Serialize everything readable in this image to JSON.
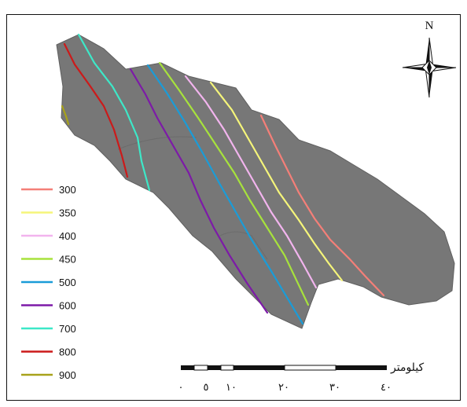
{
  "north_arrow": {
    "label": "N"
  },
  "legend": {
    "items": [
      {
        "label": "300",
        "color": "#f47f78"
      },
      {
        "label": "350",
        "color": "#f5f57a"
      },
      {
        "label": "400",
        "color": "#f2b4ee"
      },
      {
        "label": "450",
        "color": "#a7e23c"
      },
      {
        "label": "500",
        "color": "#1a9cd8"
      },
      {
        "label": "600",
        "color": "#7d1aa8"
      },
      {
        "label": "700",
        "color": "#3de8c8"
      },
      {
        "label": "800",
        "color": "#cc1a1a"
      },
      {
        "label": "900",
        "color": "#a8a21a"
      }
    ]
  },
  "scale_bar": {
    "unit_label": "کیلومتر",
    "ticks": [
      "٠",
      "٥",
      "١٠",
      "٢٠",
      "٣٠",
      "٤٠"
    ]
  },
  "colors": {
    "region_fill": "#777777",
    "frame": "#111111"
  }
}
